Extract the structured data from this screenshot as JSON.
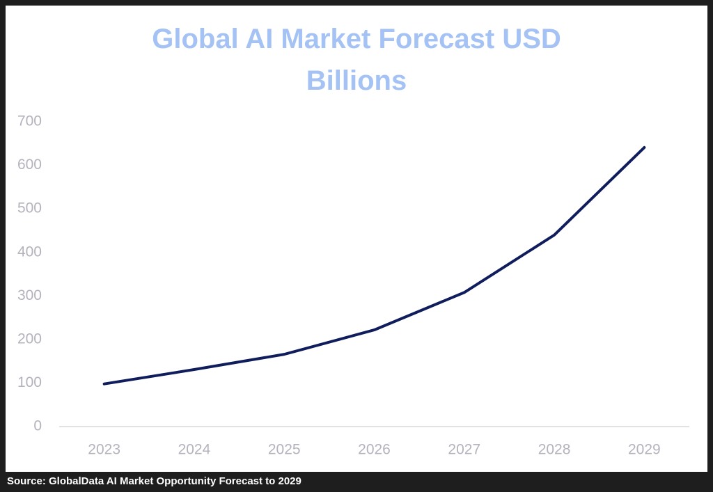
{
  "chart_data": {
    "type": "line",
    "title": "Global AI Market Forecast USD Billions",
    "categories": [
      "2023",
      "2024",
      "2025",
      "2026",
      "2027",
      "2028",
      "2029"
    ],
    "values": [
      98,
      131,
      166,
      222,
      308,
      440,
      641
    ],
    "color": "#0f1d5c",
    "ylim": [
      0,
      700
    ],
    "yticks": [
      0,
      100,
      200,
      300,
      400,
      500,
      600,
      700
    ],
    "grid": false,
    "source": "Source: GlobalData AI Market Opportunity Forecast to 2029"
  }
}
